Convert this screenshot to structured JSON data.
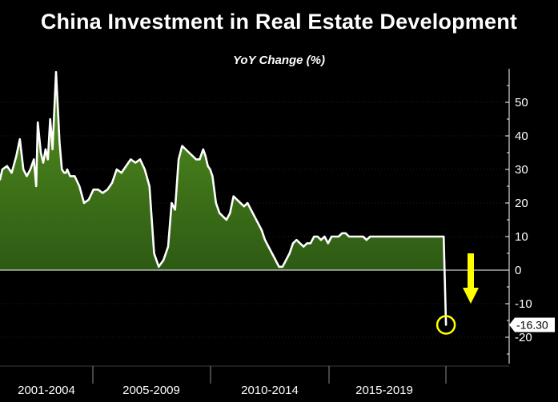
{
  "chart_data": {
    "type": "area",
    "title": "China Investment in Real Estate Development",
    "subtitle": "YoY Change (%)",
    "ylim": [
      -28,
      60
    ],
    "y_ticks": [
      50,
      40,
      30,
      20,
      10,
      0,
      -10,
      -20
    ],
    "y_tick_labels": [
      "50",
      "40",
      "30",
      "20",
      "10",
      "0",
      "-10",
      "-20"
    ],
    "x_range": [
      2001.0,
      2020.2
    ],
    "x_periods": [
      {
        "label": "2001-2004",
        "start": 2001.0,
        "end": 2005.0
      },
      {
        "label": "2005-2009",
        "start": 2005.0,
        "end": 2010.0
      },
      {
        "label": "2010-2014",
        "start": 2010.0,
        "end": 2015.0
      },
      {
        "label": "2015-2019",
        "start": 2015.0,
        "end": 2020.0
      }
    ],
    "series": [
      {
        "x": [
          2001.0,
          2001.1,
          2001.3,
          2001.5,
          2001.7,
          2001.85,
          2002.0,
          2002.15,
          2002.3,
          2002.45,
          2002.55,
          2002.62,
          2002.75,
          2002.85,
          2002.95,
          2003.05,
          2003.15,
          2003.25,
          2003.4,
          2003.55,
          2003.65,
          2003.75,
          2003.82,
          2003.88,
          2004.0,
          2004.2,
          2004.4,
          2004.6,
          2004.8,
          2005.0,
          2005.2,
          2005.4,
          2005.6,
          2005.8,
          2006.0,
          2006.2,
          2006.4,
          2006.6,
          2006.8,
          2007.0,
          2007.2,
          2007.4,
          2007.6,
          2007.8,
          2008.0,
          2008.2,
          2008.35,
          2008.5,
          2008.65,
          2008.8,
          2008.95,
          2009.1,
          2009.25,
          2009.4,
          2009.55,
          2009.7,
          2009.8,
          2009.9,
          2010.0,
          2010.1,
          2010.25,
          2010.4,
          2010.55,
          2010.7,
          2010.85,
          2011.0,
          2011.15,
          2011.3,
          2011.45,
          2011.6,
          2011.75,
          2011.9,
          2012.05,
          2012.2,
          2012.35,
          2012.5,
          2012.65,
          2012.8,
          2012.95,
          2013.1,
          2013.25,
          2013.4,
          2013.55,
          2013.7,
          2013.85,
          2014.0,
          2014.15,
          2014.3,
          2014.45,
          2014.6,
          2014.75,
          2014.9,
          2015.05,
          2015.2,
          2015.35,
          2015.5,
          2015.65,
          2015.8,
          2015.95,
          2016.1,
          2016.25,
          2016.4,
          2016.55,
          2016.7,
          2016.85,
          2017.0,
          2017.15,
          2017.3,
          2017.45,
          2017.6,
          2017.75,
          2017.9,
          2018.05,
          2018.2,
          2018.35,
          2018.5,
          2018.65,
          2018.8,
          2018.95,
          2019.1,
          2019.25,
          2019.4,
          2019.55,
          2019.7,
          2019.85,
          2020.0,
          2020.1
        ],
        "y": [
          27,
          30,
          31,
          29,
          34,
          39,
          30,
          28,
          30,
          33,
          25,
          44,
          35,
          32,
          36,
          33,
          45,
          36,
          59,
          38,
          30,
          29,
          29,
          30,
          28,
          28,
          25,
          20,
          21,
          24,
          24,
          23,
          24,
          26,
          30,
          29,
          31,
          33,
          32,
          33,
          30,
          25,
          5,
          1,
          3,
          7,
          20,
          18,
          33,
          37,
          36,
          35,
          34,
          33,
          33,
          36,
          34,
          31,
          30,
          28,
          20,
          17,
          16,
          15,
          17,
          22,
          21,
          20,
          19,
          20,
          18,
          16,
          14,
          12,
          9,
          7,
          5,
          3,
          1,
          1,
          3,
          5,
          8,
          9,
          8,
          7,
          8,
          8,
          10,
          10,
          9,
          10,
          8,
          10,
          10,
          10,
          11,
          11,
          10,
          10,
          10,
          10,
          10,
          9,
          10,
          10,
          10,
          10,
          10,
          10,
          10,
          10,
          10,
          10,
          10,
          10,
          10,
          10,
          10,
          10,
          10,
          10,
          10,
          10,
          10,
          10,
          -16.3
        ]
      }
    ],
    "callout": {
      "value": -16.3,
      "label": "-16.30",
      "x": 2020.1
    },
    "colors": {
      "background": "#000000",
      "area_fill_top": "#57931f",
      "area_fill_bottom": "#2d5a14",
      "line": "#ffffff",
      "axis": "#ffffff",
      "grid": "#8a8a8a",
      "highlight_circle": "#ffff00",
      "arrow": "#ffff00",
      "callout_bg": "#ffffff"
    }
  }
}
